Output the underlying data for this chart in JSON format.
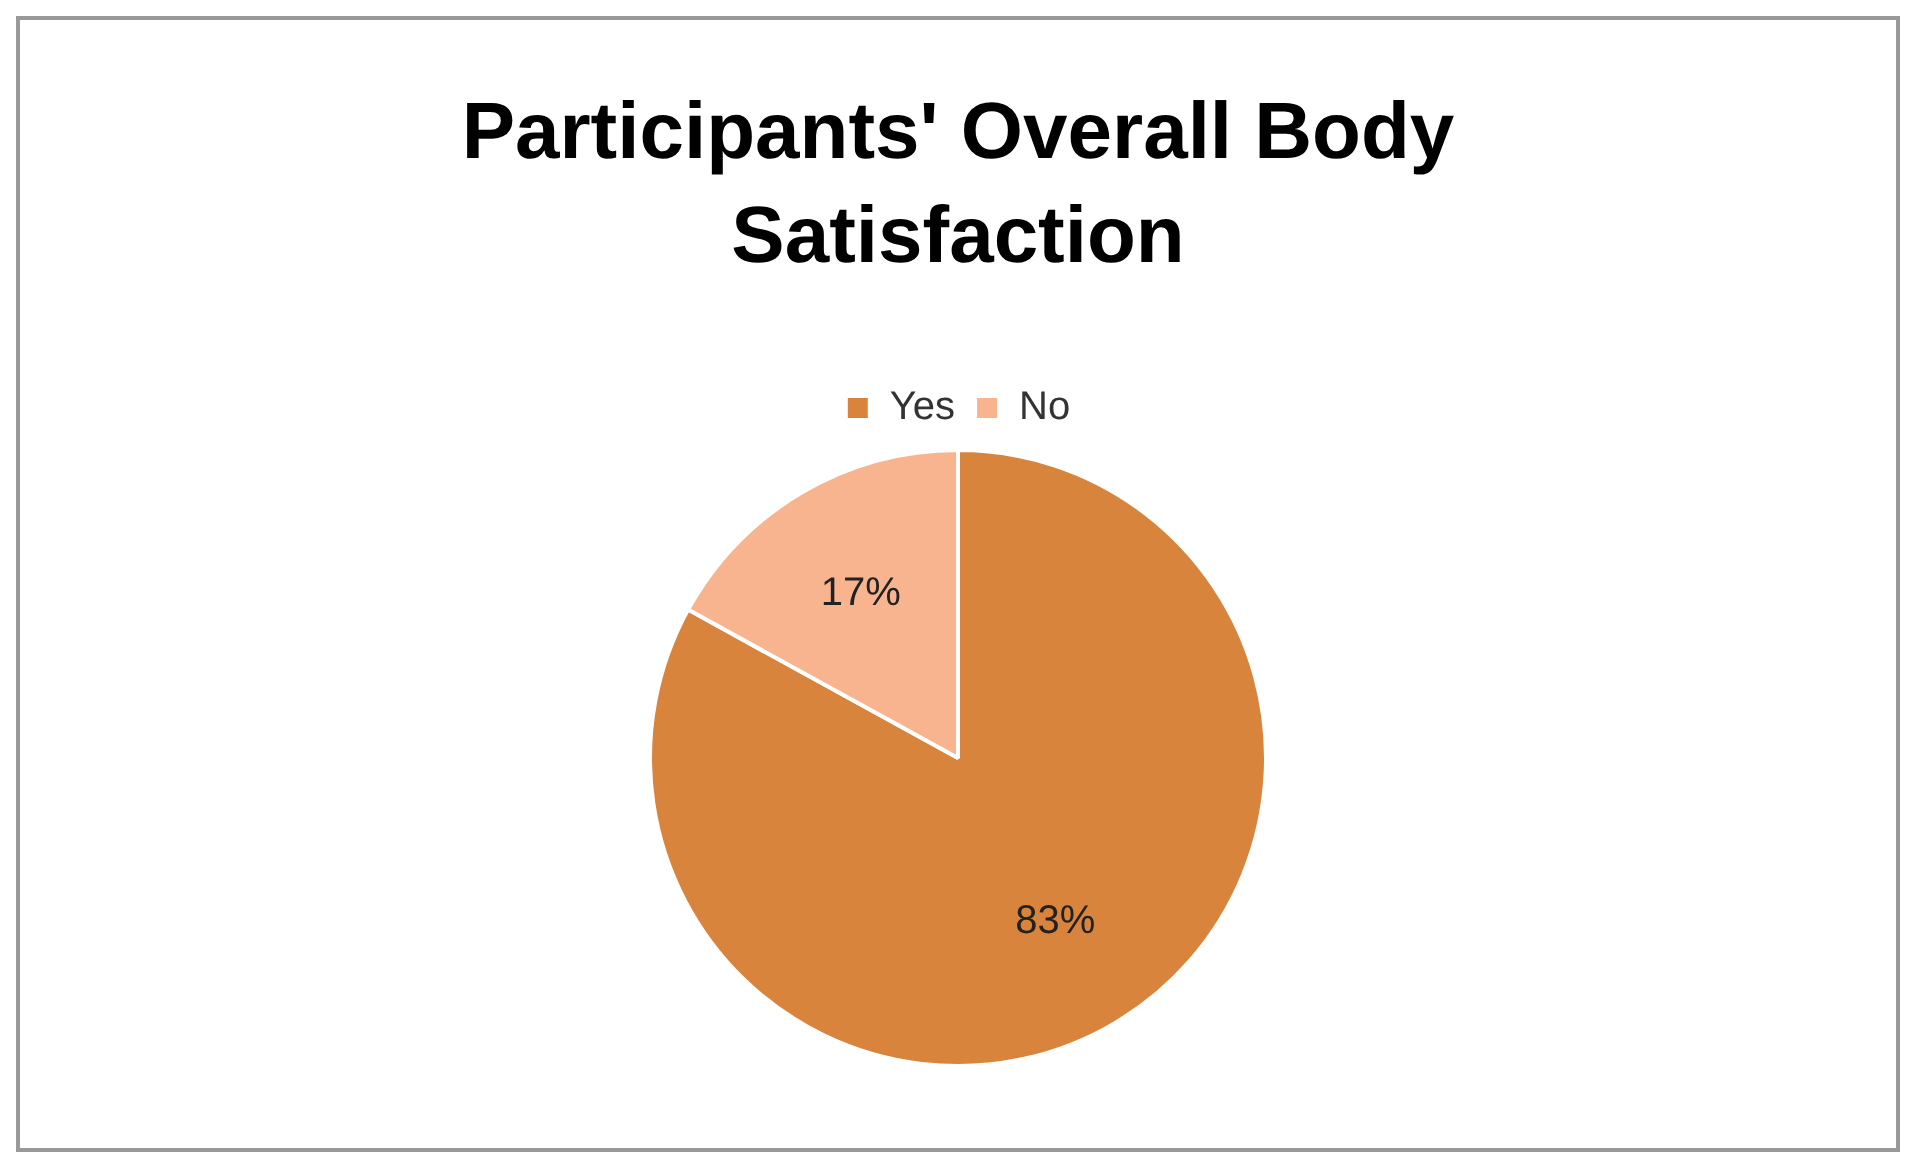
{
  "chart_data": {
    "type": "pie",
    "title": "Participants' Overall Body Satisfaction",
    "categories": [
      "Yes",
      "No"
    ],
    "values": [
      83,
      17
    ],
    "colors": [
      "#d9843c",
      "#f8b48f"
    ],
    "value_labels": [
      "83%",
      "17%"
    ],
    "legend": "top"
  }
}
